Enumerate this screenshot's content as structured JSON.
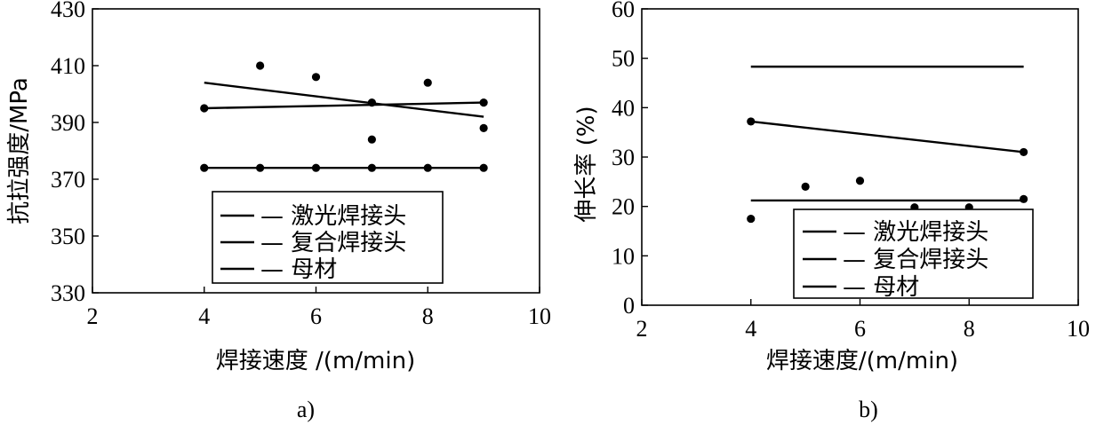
{
  "chart_data": [
    {
      "type": "scatter",
      "caption": "a)",
      "xlabel": "焊接速度 /(m/min)",
      "ylabel": "抗拉强度/MPa",
      "xlim": [
        2,
        10
      ],
      "ylim": [
        330,
        430
      ],
      "xticks": [
        "2",
        "4",
        "6",
        "8",
        "10"
      ],
      "yticks": [
        "330",
        "350",
        "370",
        "390",
        "410",
        "430"
      ],
      "legend_position": "bottom-right",
      "legend": [
        "— 激光焊接头",
        "— 复合焊接头",
        "— 母材"
      ],
      "series": [
        {
          "name": "激光焊接头",
          "points": [
            [
              5,
              410
            ],
            [
              6,
              406
            ],
            [
              7,
              397
            ],
            [
              8,
              404
            ],
            [
              9,
              388
            ]
          ],
          "fit": [
            [
              4,
              404
            ],
            [
              9,
              392
            ]
          ]
        },
        {
          "name": "复合焊接头",
          "points": [
            [
              4,
              395
            ],
            [
              7,
              384
            ],
            [
              9,
              397
            ]
          ],
          "fit": [
            [
              4,
              395
            ],
            [
              9,
              397
            ]
          ]
        },
        {
          "name": "母材",
          "points": [
            [
              4,
              374
            ],
            [
              5,
              374
            ],
            [
              6,
              374
            ],
            [
              7,
              374
            ],
            [
              8,
              374
            ],
            [
              9,
              374
            ]
          ],
          "fit": [
            [
              4,
              374
            ],
            [
              9,
              374
            ]
          ]
        }
      ]
    },
    {
      "type": "scatter",
      "caption": "b)",
      "xlabel": "焊接速度/(m/min)",
      "ylabel": "伸长率 (%)",
      "xlim": [
        2,
        10
      ],
      "ylim": [
        0,
        60
      ],
      "xticks": [
        "2",
        "4",
        "6",
        "8",
        "10"
      ],
      "yticks": [
        "0",
        "10",
        "20",
        "30",
        "40",
        "50",
        "60"
      ],
      "legend_position": "bottom-right",
      "legend": [
        "— 激光焊接头",
        "— 复合焊接头",
        "— 母材"
      ],
      "series": [
        {
          "name": "激光焊接头",
          "points": [
            [
              4,
              17.5
            ],
            [
              5,
              24
            ],
            [
              6,
              25.2
            ],
            [
              7,
              19.8
            ],
            [
              8,
              19.8
            ],
            [
              9,
              21.5
            ]
          ],
          "fit": [
            [
              4,
              21.2
            ],
            [
              9,
              21.2
            ]
          ]
        },
        {
          "name": "复合焊接头",
          "points": [
            [
              4,
              37.2
            ],
            [
              9,
              31
            ]
          ],
          "fit": [
            [
              4,
              37.2
            ],
            [
              9,
              31
            ]
          ]
        },
        {
          "name": "母材",
          "points": [],
          "fit": [
            [
              4,
              48.3
            ],
            [
              9,
              48.3
            ]
          ]
        }
      ]
    }
  ]
}
